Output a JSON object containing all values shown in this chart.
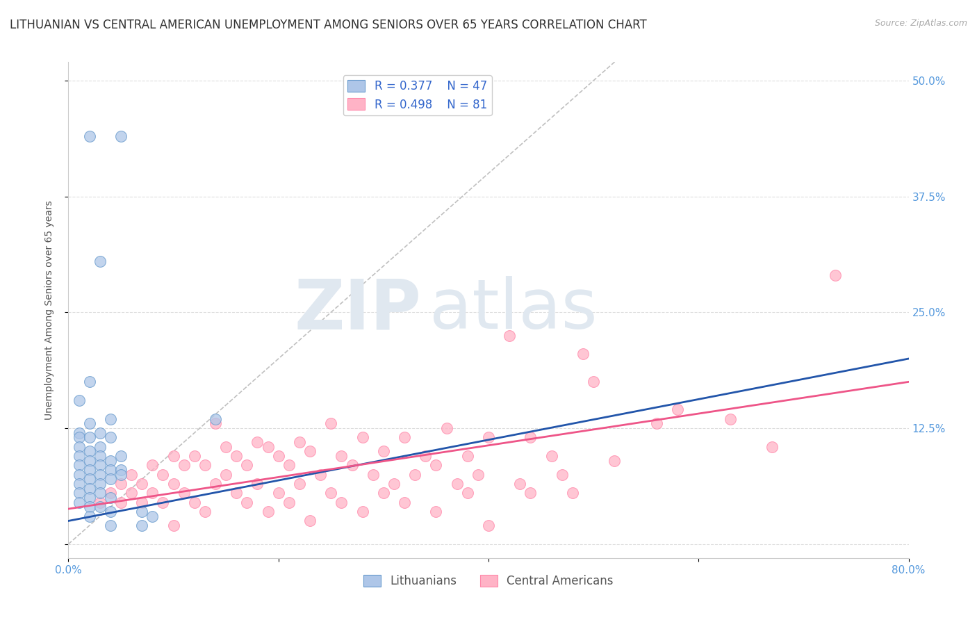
{
  "title": "LITHUANIAN VS CENTRAL AMERICAN UNEMPLOYMENT AMONG SENIORS OVER 65 YEARS CORRELATION CHART",
  "source": "Source: ZipAtlas.com",
  "ylabel": "Unemployment Among Seniors over 65 years",
  "xlim": [
    0.0,
    0.8
  ],
  "ylim": [
    -0.015,
    0.52
  ],
  "xticks": [
    0.0,
    0.2,
    0.4,
    0.6,
    0.8
  ],
  "xticklabels": [
    "0.0%",
    "",
    "",
    "",
    "80.0%"
  ],
  "yticks": [
    0.0,
    0.125,
    0.25,
    0.375,
    0.5
  ],
  "yticklabels_right": [
    "",
    "12.5%",
    "25.0%",
    "37.5%",
    "50.0%"
  ],
  "legend_R": [
    0.377,
    0.498
  ],
  "legend_N": [
    47,
    81
  ],
  "scatter_blue": [
    [
      0.02,
      0.44
    ],
    [
      0.05,
      0.44
    ],
    [
      0.03,
      0.305
    ],
    [
      0.02,
      0.175
    ],
    [
      0.01,
      0.155
    ],
    [
      0.04,
      0.135
    ],
    [
      0.02,
      0.13
    ],
    [
      0.01,
      0.12
    ],
    [
      0.03,
      0.12
    ],
    [
      0.01,
      0.115
    ],
    [
      0.02,
      0.115
    ],
    [
      0.04,
      0.115
    ],
    [
      0.01,
      0.105
    ],
    [
      0.03,
      0.105
    ],
    [
      0.02,
      0.1
    ],
    [
      0.01,
      0.095
    ],
    [
      0.03,
      0.095
    ],
    [
      0.05,
      0.095
    ],
    [
      0.02,
      0.09
    ],
    [
      0.04,
      0.09
    ],
    [
      0.01,
      0.085
    ],
    [
      0.03,
      0.085
    ],
    [
      0.02,
      0.08
    ],
    [
      0.04,
      0.08
    ],
    [
      0.05,
      0.08
    ],
    [
      0.01,
      0.075
    ],
    [
      0.03,
      0.075
    ],
    [
      0.05,
      0.075
    ],
    [
      0.02,
      0.07
    ],
    [
      0.04,
      0.07
    ],
    [
      0.01,
      0.065
    ],
    [
      0.03,
      0.065
    ],
    [
      0.02,
      0.06
    ],
    [
      0.01,
      0.055
    ],
    [
      0.03,
      0.055
    ],
    [
      0.02,
      0.05
    ],
    [
      0.04,
      0.05
    ],
    [
      0.01,
      0.045
    ],
    [
      0.02,
      0.04
    ],
    [
      0.03,
      0.04
    ],
    [
      0.04,
      0.035
    ],
    [
      0.07,
      0.035
    ],
    [
      0.02,
      0.03
    ],
    [
      0.08,
      0.03
    ],
    [
      0.04,
      0.02
    ],
    [
      0.07,
      0.02
    ],
    [
      0.14,
      0.135
    ]
  ],
  "scatter_pink": [
    [
      0.73,
      0.29
    ],
    [
      0.42,
      0.225
    ],
    [
      0.49,
      0.205
    ],
    [
      0.5,
      0.175
    ],
    [
      0.58,
      0.145
    ],
    [
      0.63,
      0.135
    ],
    [
      0.56,
      0.13
    ],
    [
      0.14,
      0.13
    ],
    [
      0.25,
      0.13
    ],
    [
      0.36,
      0.125
    ],
    [
      0.28,
      0.115
    ],
    [
      0.32,
      0.115
    ],
    [
      0.18,
      0.11
    ],
    [
      0.22,
      0.11
    ],
    [
      0.4,
      0.115
    ],
    [
      0.44,
      0.115
    ],
    [
      0.15,
      0.105
    ],
    [
      0.19,
      0.105
    ],
    [
      0.23,
      0.1
    ],
    [
      0.3,
      0.1
    ],
    [
      0.1,
      0.095
    ],
    [
      0.12,
      0.095
    ],
    [
      0.16,
      0.095
    ],
    [
      0.2,
      0.095
    ],
    [
      0.26,
      0.095
    ],
    [
      0.34,
      0.095
    ],
    [
      0.38,
      0.095
    ],
    [
      0.46,
      0.095
    ],
    [
      0.52,
      0.09
    ],
    [
      0.08,
      0.085
    ],
    [
      0.11,
      0.085
    ],
    [
      0.13,
      0.085
    ],
    [
      0.17,
      0.085
    ],
    [
      0.21,
      0.085
    ],
    [
      0.27,
      0.085
    ],
    [
      0.35,
      0.085
    ],
    [
      0.06,
      0.075
    ],
    [
      0.09,
      0.075
    ],
    [
      0.15,
      0.075
    ],
    [
      0.24,
      0.075
    ],
    [
      0.29,
      0.075
    ],
    [
      0.33,
      0.075
    ],
    [
      0.39,
      0.075
    ],
    [
      0.47,
      0.075
    ],
    [
      0.67,
      0.105
    ],
    [
      0.05,
      0.065
    ],
    [
      0.07,
      0.065
    ],
    [
      0.1,
      0.065
    ],
    [
      0.14,
      0.065
    ],
    [
      0.18,
      0.065
    ],
    [
      0.22,
      0.065
    ],
    [
      0.31,
      0.065
    ],
    [
      0.37,
      0.065
    ],
    [
      0.43,
      0.065
    ],
    [
      0.04,
      0.055
    ],
    [
      0.06,
      0.055
    ],
    [
      0.08,
      0.055
    ],
    [
      0.11,
      0.055
    ],
    [
      0.16,
      0.055
    ],
    [
      0.2,
      0.055
    ],
    [
      0.25,
      0.055
    ],
    [
      0.3,
      0.055
    ],
    [
      0.38,
      0.055
    ],
    [
      0.44,
      0.055
    ],
    [
      0.48,
      0.055
    ],
    [
      0.03,
      0.045
    ],
    [
      0.05,
      0.045
    ],
    [
      0.07,
      0.045
    ],
    [
      0.09,
      0.045
    ],
    [
      0.12,
      0.045
    ],
    [
      0.17,
      0.045
    ],
    [
      0.21,
      0.045
    ],
    [
      0.26,
      0.045
    ],
    [
      0.32,
      0.045
    ],
    [
      0.13,
      0.035
    ],
    [
      0.19,
      0.035
    ],
    [
      0.28,
      0.035
    ],
    [
      0.35,
      0.035
    ],
    [
      0.23,
      0.025
    ],
    [
      0.1,
      0.02
    ],
    [
      0.4,
      0.02
    ]
  ],
  "blue_line": {
    "x": [
      0.0,
      0.8
    ],
    "y": [
      0.025,
      0.2
    ]
  },
  "pink_line": {
    "x": [
      0.0,
      0.8
    ],
    "y": [
      0.038,
      0.175
    ]
  },
  "ref_line": {
    "x": [
      0.0,
      0.8
    ],
    "y": [
      0.0,
      0.8
    ]
  },
  "blue_color": "#AEC6E8",
  "pink_color": "#FFB3C6",
  "blue_edge_color": "#6699CC",
  "pink_edge_color": "#FF88AA",
  "blue_line_color": "#2255AA",
  "pink_line_color": "#EE5588",
  "ref_line_color": "#C0C0C0",
  "background_color": "#FFFFFF",
  "grid_color": "#DDDDDD",
  "title_fontsize": 12,
  "axis_label_fontsize": 10,
  "tick_fontsize": 11,
  "legend_fontsize": 12,
  "watermark_zip": "ZIP",
  "watermark_atlas": "atlas",
  "watermark_color": "#E0E8F0"
}
